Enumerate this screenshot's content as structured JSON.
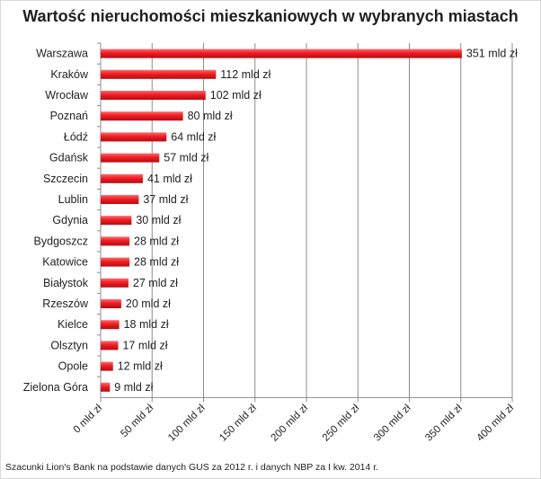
{
  "title": "Wartość nieruchomości mieszkaniowych w wybranych miastach",
  "source": "Szacunki Lion's Bank na podstawie danych GUS za 2012 r. i danych NBP za I kw. 2014 r.",
  "chart_data": {
    "type": "bar",
    "orientation": "horizontal",
    "title": "Wartość nieruchomości mieszkaniowych w wybranych miastach",
    "categories": [
      "Warszawa",
      "Kraków",
      "Wrocław",
      "Poznań",
      "Łódź",
      "Gdańsk",
      "Szczecin",
      "Lublin",
      "Gdynia",
      "Bydgoszcz",
      "Katowice",
      "Białystok",
      "Rzeszów",
      "Kielce",
      "Olsztyn",
      "Opole",
      "Zielona Góra"
    ],
    "values": [
      351,
      112,
      102,
      80,
      64,
      57,
      41,
      37,
      30,
      28,
      28,
      27,
      20,
      18,
      17,
      12,
      9
    ],
    "data_labels": [
      "351 mld zł",
      "112 mld zł",
      "102 mld zł",
      "80 mld zł",
      "64 mld zł",
      "57 mld zł",
      "41 mld zł",
      "37 mld zł",
      "30 mld zł",
      "28 mld zł",
      "28 mld zł",
      "27 mld zł",
      "20 mld zł",
      "18 mld zł",
      "17 mld zł",
      "12 mld zł",
      "9 mld zł"
    ],
    "x_ticks": [
      0,
      50,
      100,
      150,
      200,
      250,
      300,
      350,
      400
    ],
    "x_tick_labels": [
      "0 mld zł",
      "50 mld zł",
      "100 mld zł",
      "150 mld zł",
      "200 mld zł",
      "250 mld zł",
      "300 mld zł",
      "350 mld zł",
      "400 mld zł"
    ],
    "xlim": [
      0,
      400
    ],
    "xlabel": "",
    "ylabel": "",
    "grid": true,
    "legend": "none",
    "bar_color": "#e8141c"
  }
}
